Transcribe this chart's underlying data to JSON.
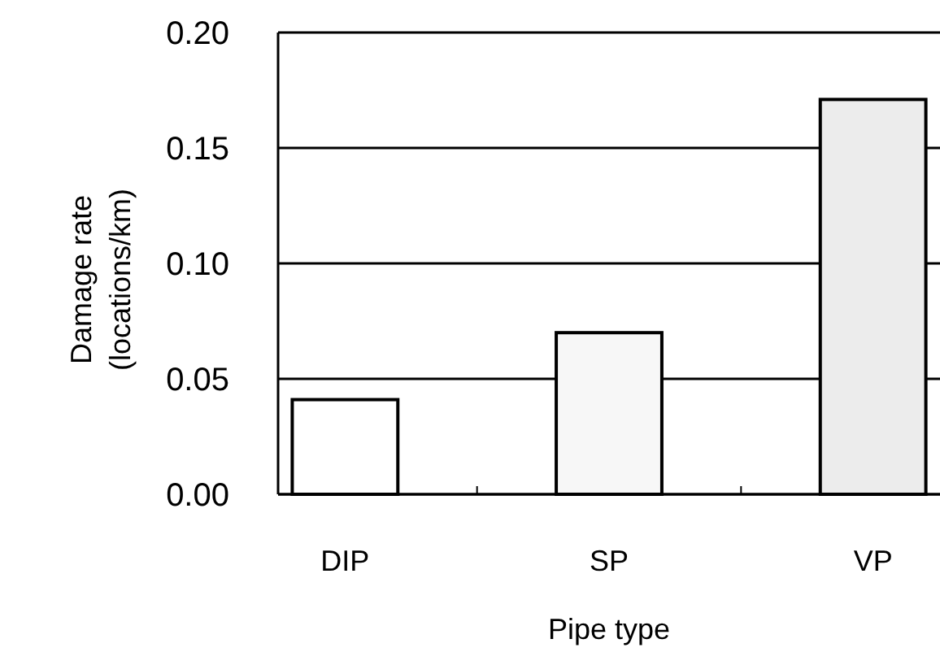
{
  "chart_data": {
    "type": "bar",
    "xlabel": "Pipe type",
    "ylabel": "Damage rate\n(locations/km)",
    "categories": [
      "DIP",
      "SP",
      "VP"
    ],
    "values": [
      0.041,
      0.07,
      0.171
    ],
    "colors": [
      "#ffffff",
      "#f7f7f7",
      "#ececec"
    ],
    "ylim": [
      0,
      0.2
    ],
    "yticks": [
      {
        "value": 0,
        "label": "0.00"
      },
      {
        "value": 0.05,
        "label": "0.05"
      },
      {
        "value": 0.1,
        "label": "0.10"
      },
      {
        "value": 0.15,
        "label": "0.15"
      },
      {
        "value": 0.2,
        "label": "0.20"
      }
    ],
    "grid": "y"
  }
}
